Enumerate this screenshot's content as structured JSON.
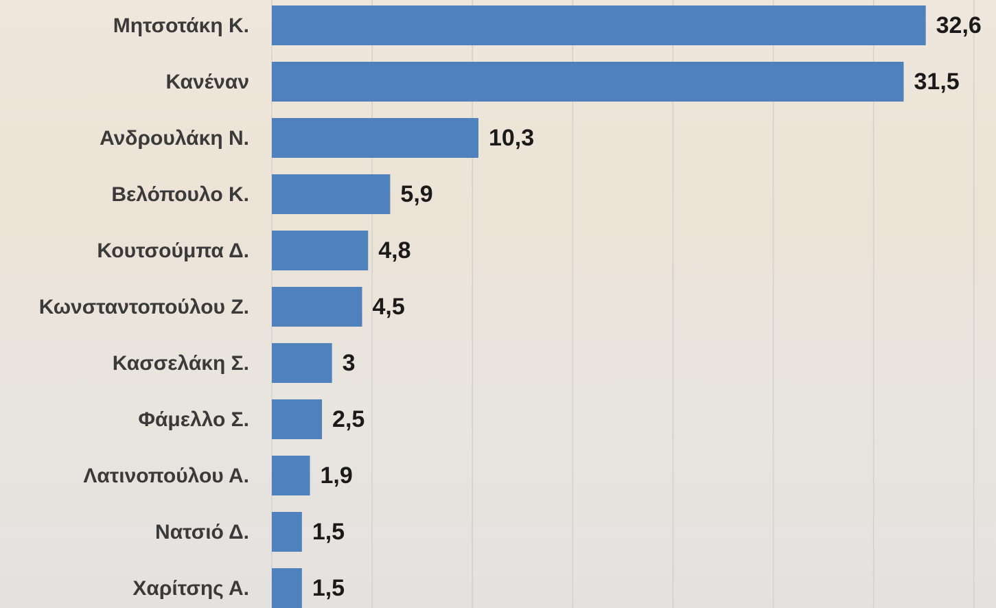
{
  "chart_data": {
    "type": "barh",
    "categories": [
      "Μητσοτάκη Κ.",
      "Κανέναν",
      "Ανδρουλάκη Ν.",
      "Βελόπουλο Κ.",
      "Κουτσούμπα Δ.",
      "Κωνσταντοπούλου Ζ.",
      "Κασσελάκη Σ.",
      "Φάμελλο Σ.",
      "Λατινοπούλου Α.",
      "Νατσιό Δ.",
      "Χαρίτσης Α."
    ],
    "values": [
      32.6,
      31.5,
      10.3,
      5.9,
      4.8,
      4.5,
      3,
      2.5,
      1.9,
      1.5,
      1.5
    ],
    "value_labels": [
      "32,6",
      "31,5",
      "10,3",
      "5,9",
      "4,8",
      "4,5",
      "3",
      "2,5",
      "1,9",
      "1,5",
      "1,5"
    ],
    "color": "#4f81bd",
    "xlim": [
      0,
      36
    ],
    "xticks": [
      0,
      5,
      10,
      15,
      20,
      25,
      30,
      35
    ],
    "grid": true
  }
}
